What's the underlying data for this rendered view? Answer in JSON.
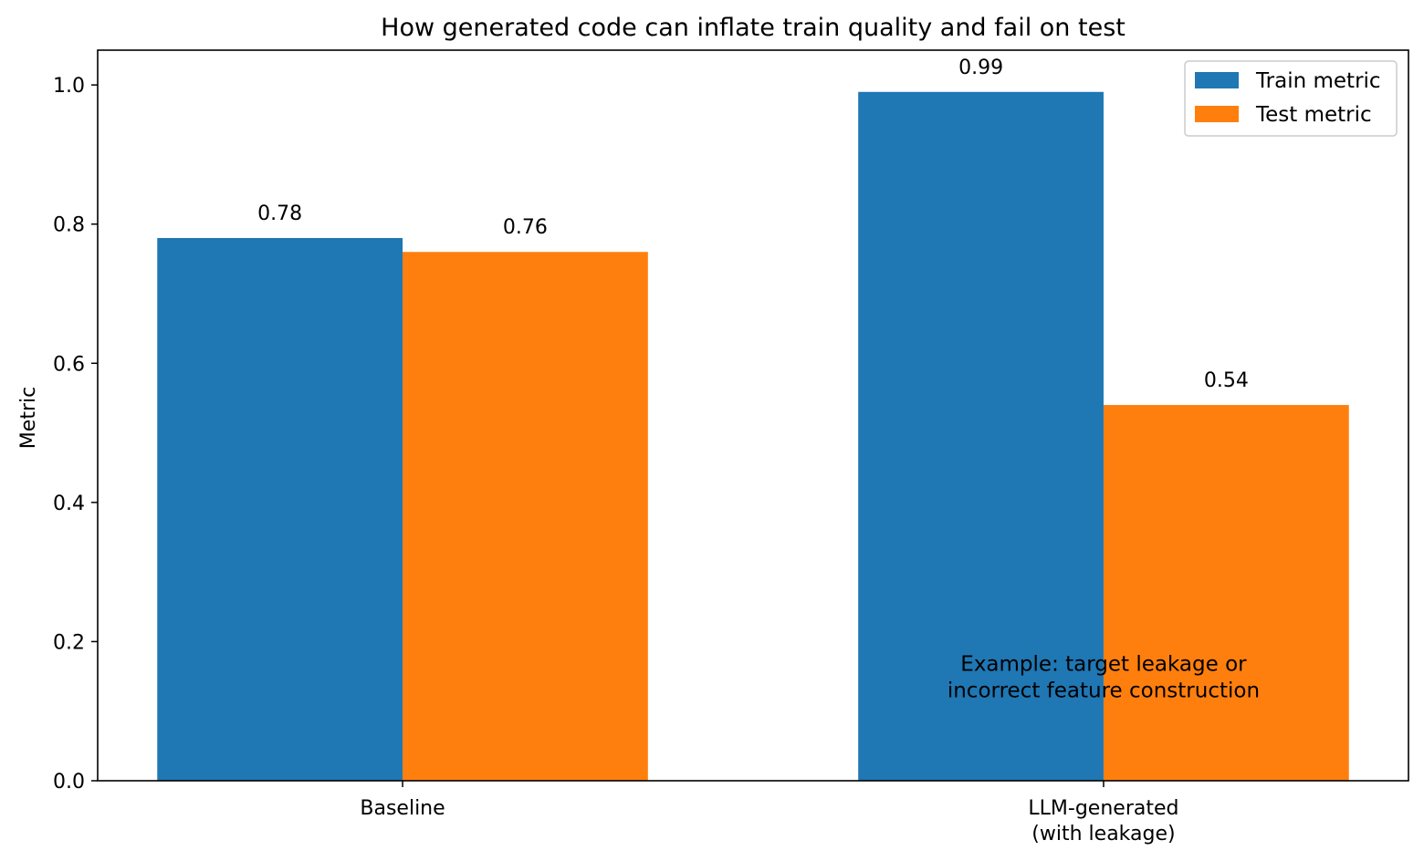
{
  "chart_data": {
    "type": "bar",
    "title": "How generated code can inflate train quality and fail on test",
    "xlabel": "",
    "ylabel": "Metric",
    "ylim": [
      0,
      1.05
    ],
    "yticks": [
      0.0,
      0.2,
      0.4,
      0.6,
      0.8,
      1.0
    ],
    "ytick_labels": [
      "0.0",
      "0.2",
      "0.4",
      "0.6",
      "0.8",
      "1.0"
    ],
    "categories": [
      [
        "Baseline"
      ],
      [
        "LLM-generated",
        "(with leakage)"
      ]
    ],
    "series": [
      {
        "name": "Train metric",
        "color": "#1f77b4",
        "values": [
          0.78,
          0.99
        ],
        "labels": [
          "0.78",
          "0.99"
        ]
      },
      {
        "name": "Test metric",
        "color": "#ff7f0e",
        "values": [
          0.76,
          0.54
        ],
        "labels": [
          "0.76",
          "0.54"
        ]
      }
    ],
    "legend": {
      "position": "top-right"
    },
    "annotation": {
      "lines": [
        "Example: target leakage or",
        "incorrect feature construction"
      ],
      "category_index": 1,
      "y": 0.15
    },
    "grid": false
  }
}
